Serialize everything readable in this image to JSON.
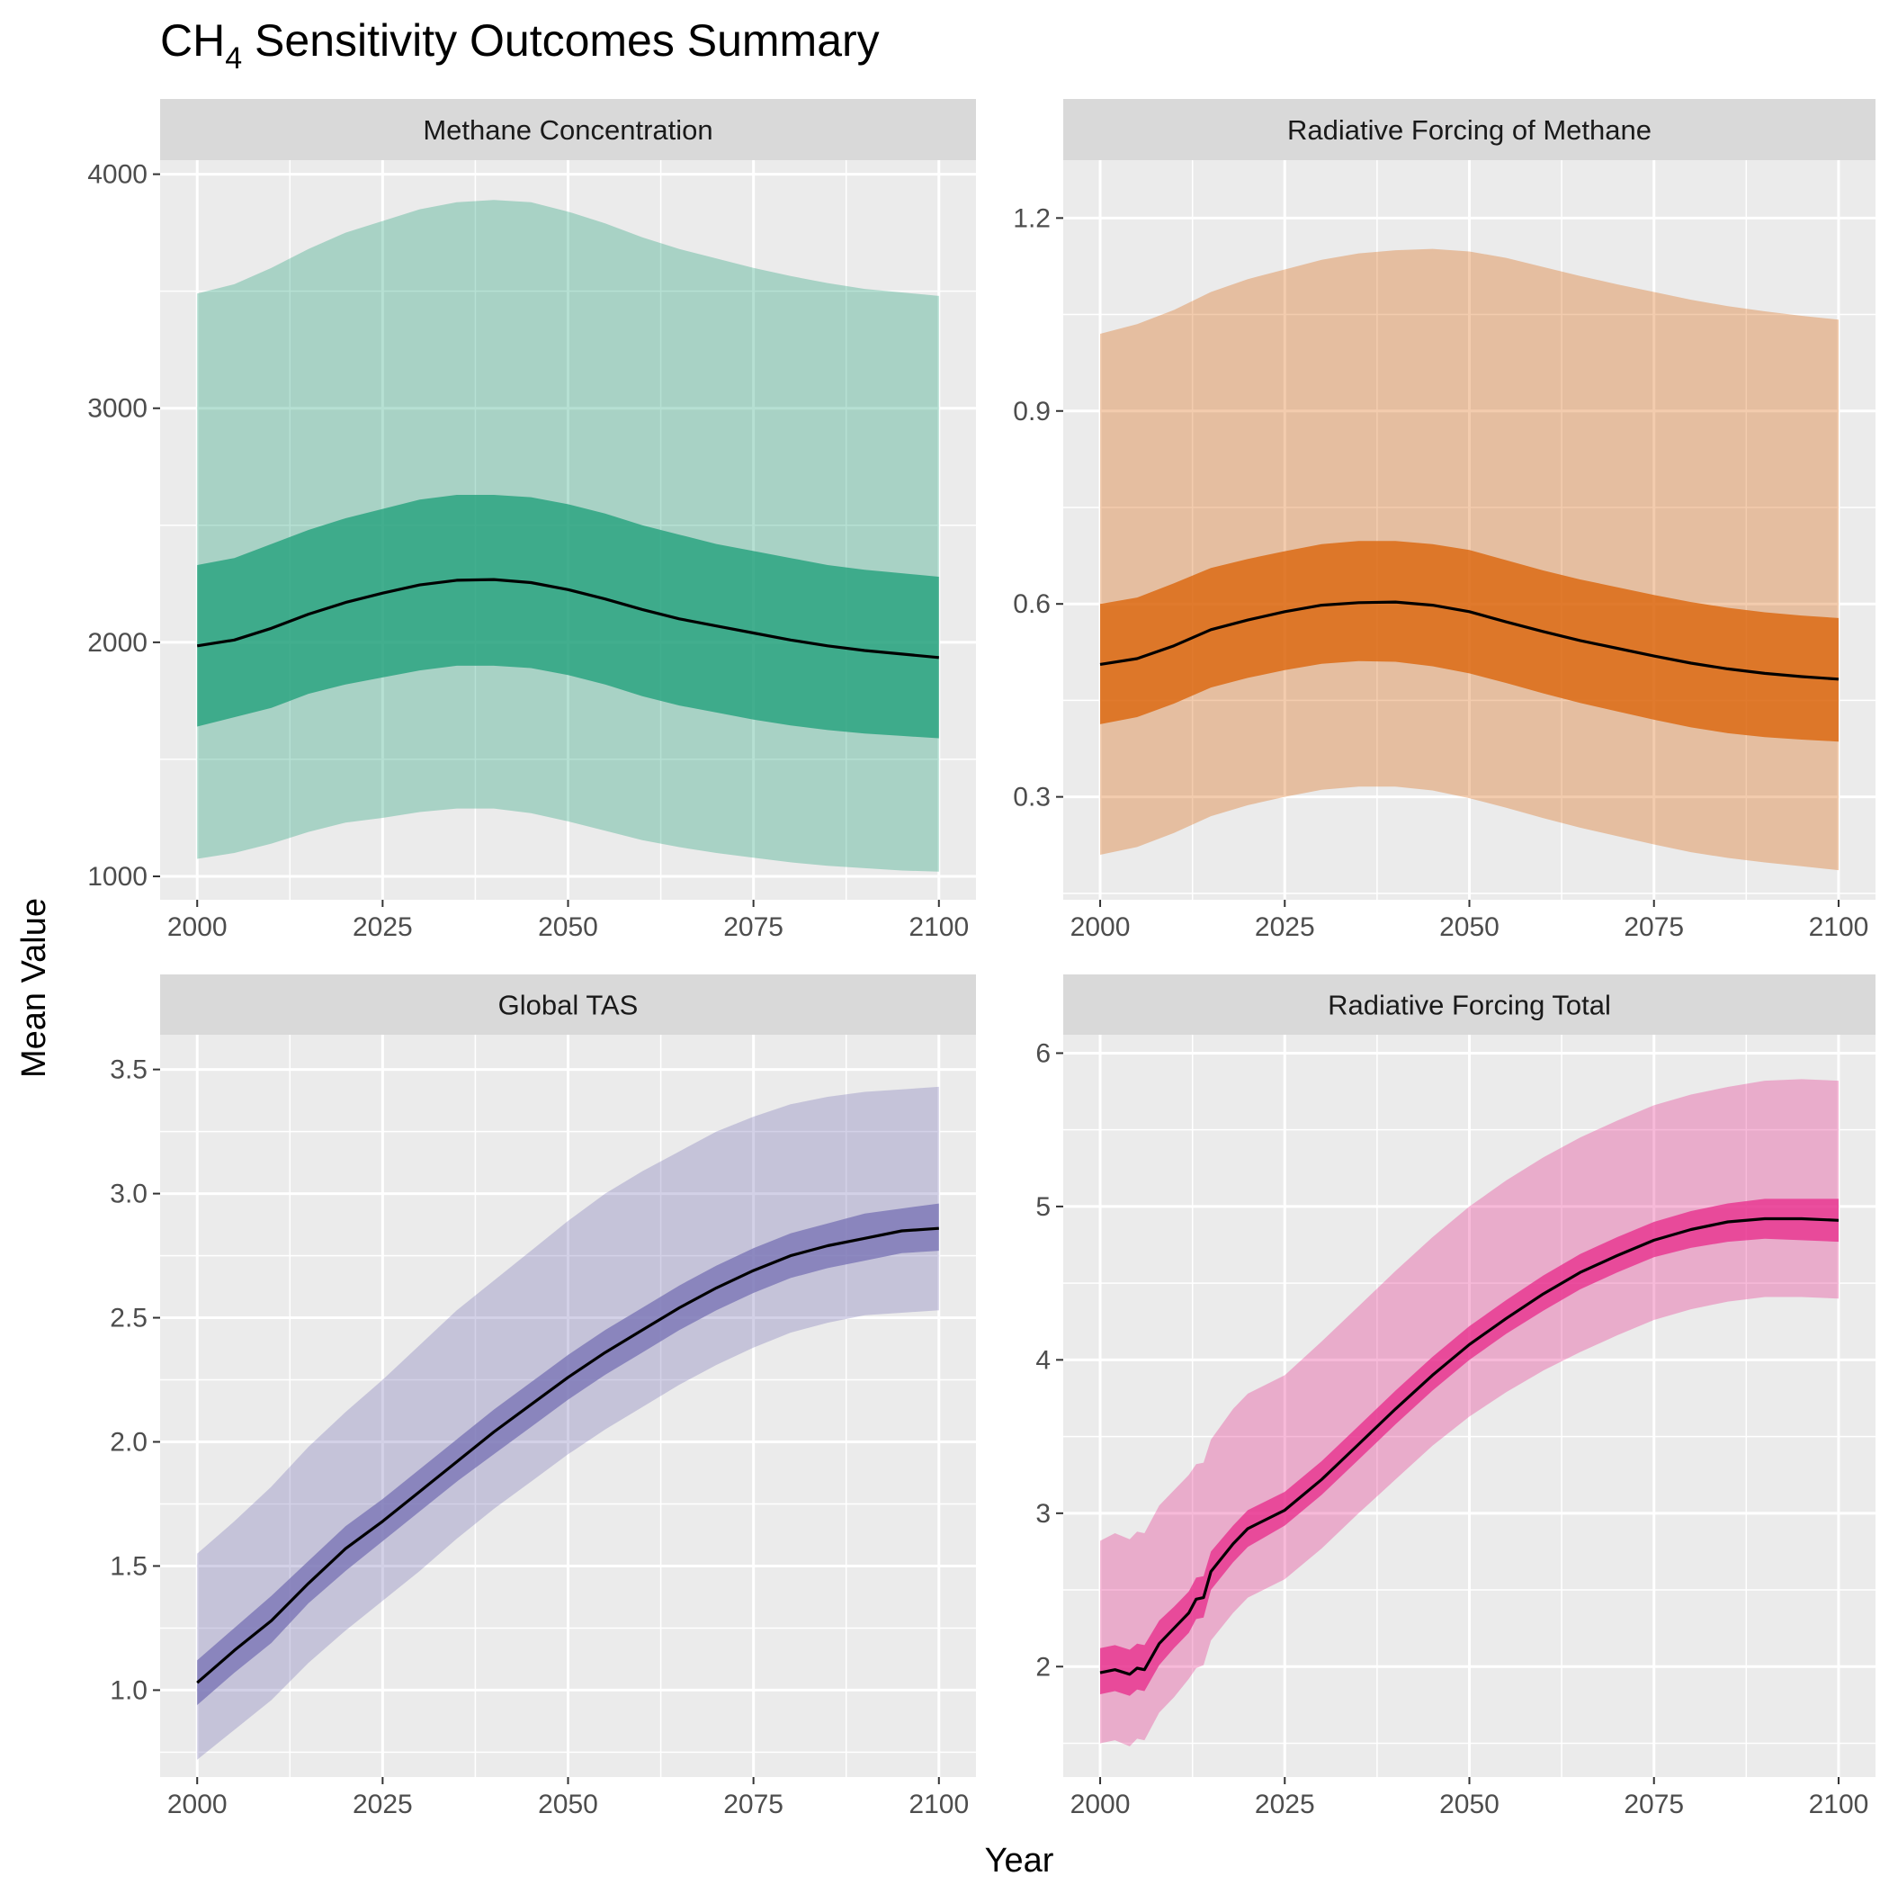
{
  "title": {
    "main": "CH",
    "subscript": "4",
    "rest": " Sensitivity Outcomes Summary"
  },
  "xlabel": "Year",
  "ylabel": "Mean Value",
  "chart_data": [
    {
      "type": "area",
      "facet": "Methane Concentration",
      "fill_color": "#1b9e77",
      "xlim": [
        1995,
        2105
      ],
      "ylim": [
        900,
        4060
      ],
      "x_ticks": [
        2000,
        2025,
        2050,
        2075,
        2100
      ],
      "y_ticks": [
        1000,
        2000,
        3000,
        4000
      ],
      "y_tick_labels": [
        "1000",
        "2000",
        "3000",
        "4000"
      ],
      "grid": true,
      "x": [
        2000,
        2005,
        2010,
        2015,
        2020,
        2025,
        2030,
        2035,
        2040,
        2045,
        2050,
        2055,
        2060,
        2065,
        2070,
        2075,
        2080,
        2085,
        2090,
        2095,
        2100
      ],
      "mean": [
        1985,
        2010,
        2060,
        2120,
        2170,
        2210,
        2245,
        2265,
        2268,
        2255,
        2225,
        2185,
        2140,
        2100,
        2070,
        2040,
        2010,
        1985,
        1965,
        1950,
        1935
      ],
      "inner_low": [
        1640,
        1680,
        1720,
        1780,
        1820,
        1850,
        1880,
        1900,
        1900,
        1890,
        1860,
        1820,
        1770,
        1730,
        1700,
        1670,
        1645,
        1625,
        1610,
        1600,
        1590
      ],
      "inner_high": [
        2330,
        2360,
        2420,
        2480,
        2530,
        2570,
        2610,
        2630,
        2630,
        2620,
        2590,
        2550,
        2500,
        2460,
        2420,
        2390,
        2360,
        2330,
        2310,
        2295,
        2280
      ],
      "outer_low": [
        1075,
        1100,
        1140,
        1190,
        1230,
        1250,
        1275,
        1290,
        1290,
        1270,
        1235,
        1195,
        1155,
        1125,
        1100,
        1080,
        1060,
        1045,
        1035,
        1025,
        1020
      ],
      "outer_high": [
        3490,
        3530,
        3600,
        3680,
        3750,
        3800,
        3850,
        3880,
        3890,
        3880,
        3840,
        3790,
        3730,
        3680,
        3640,
        3600,
        3565,
        3535,
        3510,
        3495,
        3480
      ]
    },
    {
      "type": "area",
      "facet": "Radiative Forcing of Methane",
      "fill_color": "#d95f02",
      "xlim": [
        1995,
        2105
      ],
      "ylim": [
        0.14,
        1.29
      ],
      "x_ticks": [
        2000,
        2025,
        2050,
        2075,
        2100
      ],
      "y_ticks": [
        0.3,
        0.6,
        0.9,
        1.2
      ],
      "y_tick_labels": [
        "0.3",
        "0.6",
        "0.9",
        "1.2"
      ],
      "grid": true,
      "x": [
        2000,
        2005,
        2010,
        2015,
        2020,
        2025,
        2030,
        2035,
        2040,
        2045,
        2050,
        2055,
        2060,
        2065,
        2070,
        2075,
        2080,
        2085,
        2090,
        2095,
        2100
      ],
      "mean": [
        0.506,
        0.515,
        0.535,
        0.56,
        0.575,
        0.588,
        0.598,
        0.602,
        0.603,
        0.598,
        0.588,
        0.572,
        0.557,
        0.543,
        0.531,
        0.519,
        0.508,
        0.499,
        0.492,
        0.487,
        0.483
      ],
      "inner_low": [
        0.413,
        0.424,
        0.445,
        0.47,
        0.485,
        0.497,
        0.507,
        0.511,
        0.51,
        0.503,
        0.492,
        0.477,
        0.461,
        0.446,
        0.433,
        0.42,
        0.408,
        0.399,
        0.393,
        0.389,
        0.386
      ],
      "inner_high": [
        0.6,
        0.61,
        0.632,
        0.656,
        0.67,
        0.682,
        0.693,
        0.698,
        0.698,
        0.693,
        0.684,
        0.668,
        0.652,
        0.638,
        0.626,
        0.614,
        0.603,
        0.594,
        0.587,
        0.582,
        0.578
      ],
      "outer_low": [
        0.21,
        0.222,
        0.244,
        0.27,
        0.287,
        0.3,
        0.311,
        0.316,
        0.316,
        0.31,
        0.298,
        0.283,
        0.267,
        0.252,
        0.239,
        0.226,
        0.214,
        0.205,
        0.198,
        0.192,
        0.186
      ],
      "outer_high": [
        1.02,
        1.035,
        1.057,
        1.085,
        1.105,
        1.12,
        1.135,
        1.145,
        1.15,
        1.152,
        1.148,
        1.138,
        1.124,
        1.11,
        1.097,
        1.085,
        1.073,
        1.063,
        1.055,
        1.048,
        1.042
      ]
    },
    {
      "type": "area",
      "facet": "Global TAS",
      "fill_color": "#7570b3",
      "xlim": [
        1995,
        2105
      ],
      "ylim": [
        0.65,
        3.64
      ],
      "x_ticks": [
        2000,
        2025,
        2050,
        2075,
        2100
      ],
      "y_ticks": [
        1.0,
        1.5,
        2.0,
        2.5,
        3.0,
        3.5
      ],
      "y_tick_labels": [
        "1.0",
        "1.5",
        "2.0",
        "2.5",
        "3.0",
        "3.5"
      ],
      "grid": true,
      "x": [
        2000,
        2005,
        2010,
        2015,
        2020,
        2025,
        2030,
        2035,
        2040,
        2045,
        2050,
        2055,
        2060,
        2065,
        2070,
        2075,
        2080,
        2085,
        2090,
        2095,
        2100
      ],
      "mean": [
        1.03,
        1.16,
        1.28,
        1.43,
        1.57,
        1.68,
        1.8,
        1.92,
        2.04,
        2.15,
        2.26,
        2.36,
        2.45,
        2.54,
        2.62,
        2.69,
        2.75,
        2.79,
        2.82,
        2.85,
        2.86
      ],
      "inner_low": [
        0.94,
        1.07,
        1.19,
        1.35,
        1.48,
        1.6,
        1.72,
        1.84,
        1.95,
        2.06,
        2.17,
        2.27,
        2.36,
        2.45,
        2.53,
        2.6,
        2.66,
        2.7,
        2.73,
        2.76,
        2.77
      ],
      "inner_high": [
        1.12,
        1.25,
        1.38,
        1.52,
        1.66,
        1.77,
        1.89,
        2.01,
        2.13,
        2.24,
        2.35,
        2.45,
        2.54,
        2.63,
        2.71,
        2.78,
        2.84,
        2.88,
        2.92,
        2.94,
        2.96
      ],
      "outer_low": [
        0.72,
        0.84,
        0.96,
        1.11,
        1.24,
        1.36,
        1.48,
        1.61,
        1.73,
        1.84,
        1.95,
        2.05,
        2.14,
        2.23,
        2.31,
        2.38,
        2.44,
        2.48,
        2.51,
        2.52,
        2.53
      ],
      "outer_high": [
        1.55,
        1.68,
        1.82,
        1.98,
        2.12,
        2.25,
        2.39,
        2.53,
        2.65,
        2.77,
        2.89,
        3.0,
        3.09,
        3.17,
        3.25,
        3.31,
        3.36,
        3.39,
        3.41,
        3.42,
        3.43
      ]
    },
    {
      "type": "area",
      "facet": "Radiative Forcing Total",
      "fill_color": "#e7298a",
      "xlim": [
        1995,
        2105
      ],
      "ylim": [
        1.28,
        6.12
      ],
      "x_ticks": [
        2000,
        2025,
        2050,
        2075,
        2100
      ],
      "y_ticks": [
        2,
        3,
        4,
        5,
        6
      ],
      "y_tick_labels": [
        "2",
        "3",
        "4",
        "5",
        "6"
      ],
      "grid": true,
      "x": [
        2000,
        2002,
        2004,
        2005,
        2006,
        2008,
        2010,
        2012,
        2013,
        2014,
        2015,
        2018,
        2020,
        2025,
        2030,
        2035,
        2040,
        2045,
        2050,
        2055,
        2060,
        2065,
        2070,
        2075,
        2080,
        2085,
        2090,
        2095,
        2100
      ],
      "mean": [
        1.96,
        1.98,
        1.95,
        1.99,
        1.98,
        2.15,
        2.25,
        2.35,
        2.44,
        2.45,
        2.62,
        2.8,
        2.9,
        3.02,
        3.22,
        3.45,
        3.68,
        3.9,
        4.1,
        4.27,
        4.43,
        4.57,
        4.68,
        4.78,
        4.85,
        4.9,
        4.92,
        4.92,
        4.91
      ],
      "inner_low": [
        1.82,
        1.84,
        1.81,
        1.85,
        1.84,
        2.01,
        2.12,
        2.22,
        2.31,
        2.32,
        2.5,
        2.68,
        2.78,
        2.92,
        3.12,
        3.35,
        3.58,
        3.8,
        4.0,
        4.17,
        4.32,
        4.46,
        4.57,
        4.67,
        4.73,
        4.77,
        4.79,
        4.78,
        4.77
      ],
      "inner_high": [
        2.12,
        2.14,
        2.11,
        2.15,
        2.14,
        2.3,
        2.39,
        2.49,
        2.58,
        2.59,
        2.75,
        2.92,
        3.02,
        3.14,
        3.34,
        3.57,
        3.8,
        4.02,
        4.22,
        4.39,
        4.55,
        4.69,
        4.8,
        4.9,
        4.97,
        5.02,
        5.05,
        5.05,
        5.05
      ],
      "outer_low": [
        1.5,
        1.52,
        1.48,
        1.53,
        1.52,
        1.7,
        1.8,
        1.92,
        1.99,
        2.01,
        2.17,
        2.35,
        2.45,
        2.57,
        2.77,
        3.0,
        3.22,
        3.44,
        3.63,
        3.79,
        3.93,
        4.05,
        4.16,
        4.26,
        4.33,
        4.38,
        4.41,
        4.41,
        4.4
      ],
      "outer_high": [
        2.82,
        2.87,
        2.83,
        2.88,
        2.87,
        3.05,
        3.15,
        3.25,
        3.32,
        3.33,
        3.48,
        3.68,
        3.78,
        3.9,
        4.12,
        4.35,
        4.58,
        4.8,
        5.0,
        5.17,
        5.32,
        5.45,
        5.56,
        5.66,
        5.73,
        5.78,
        5.82,
        5.83,
        5.82
      ]
    }
  ]
}
